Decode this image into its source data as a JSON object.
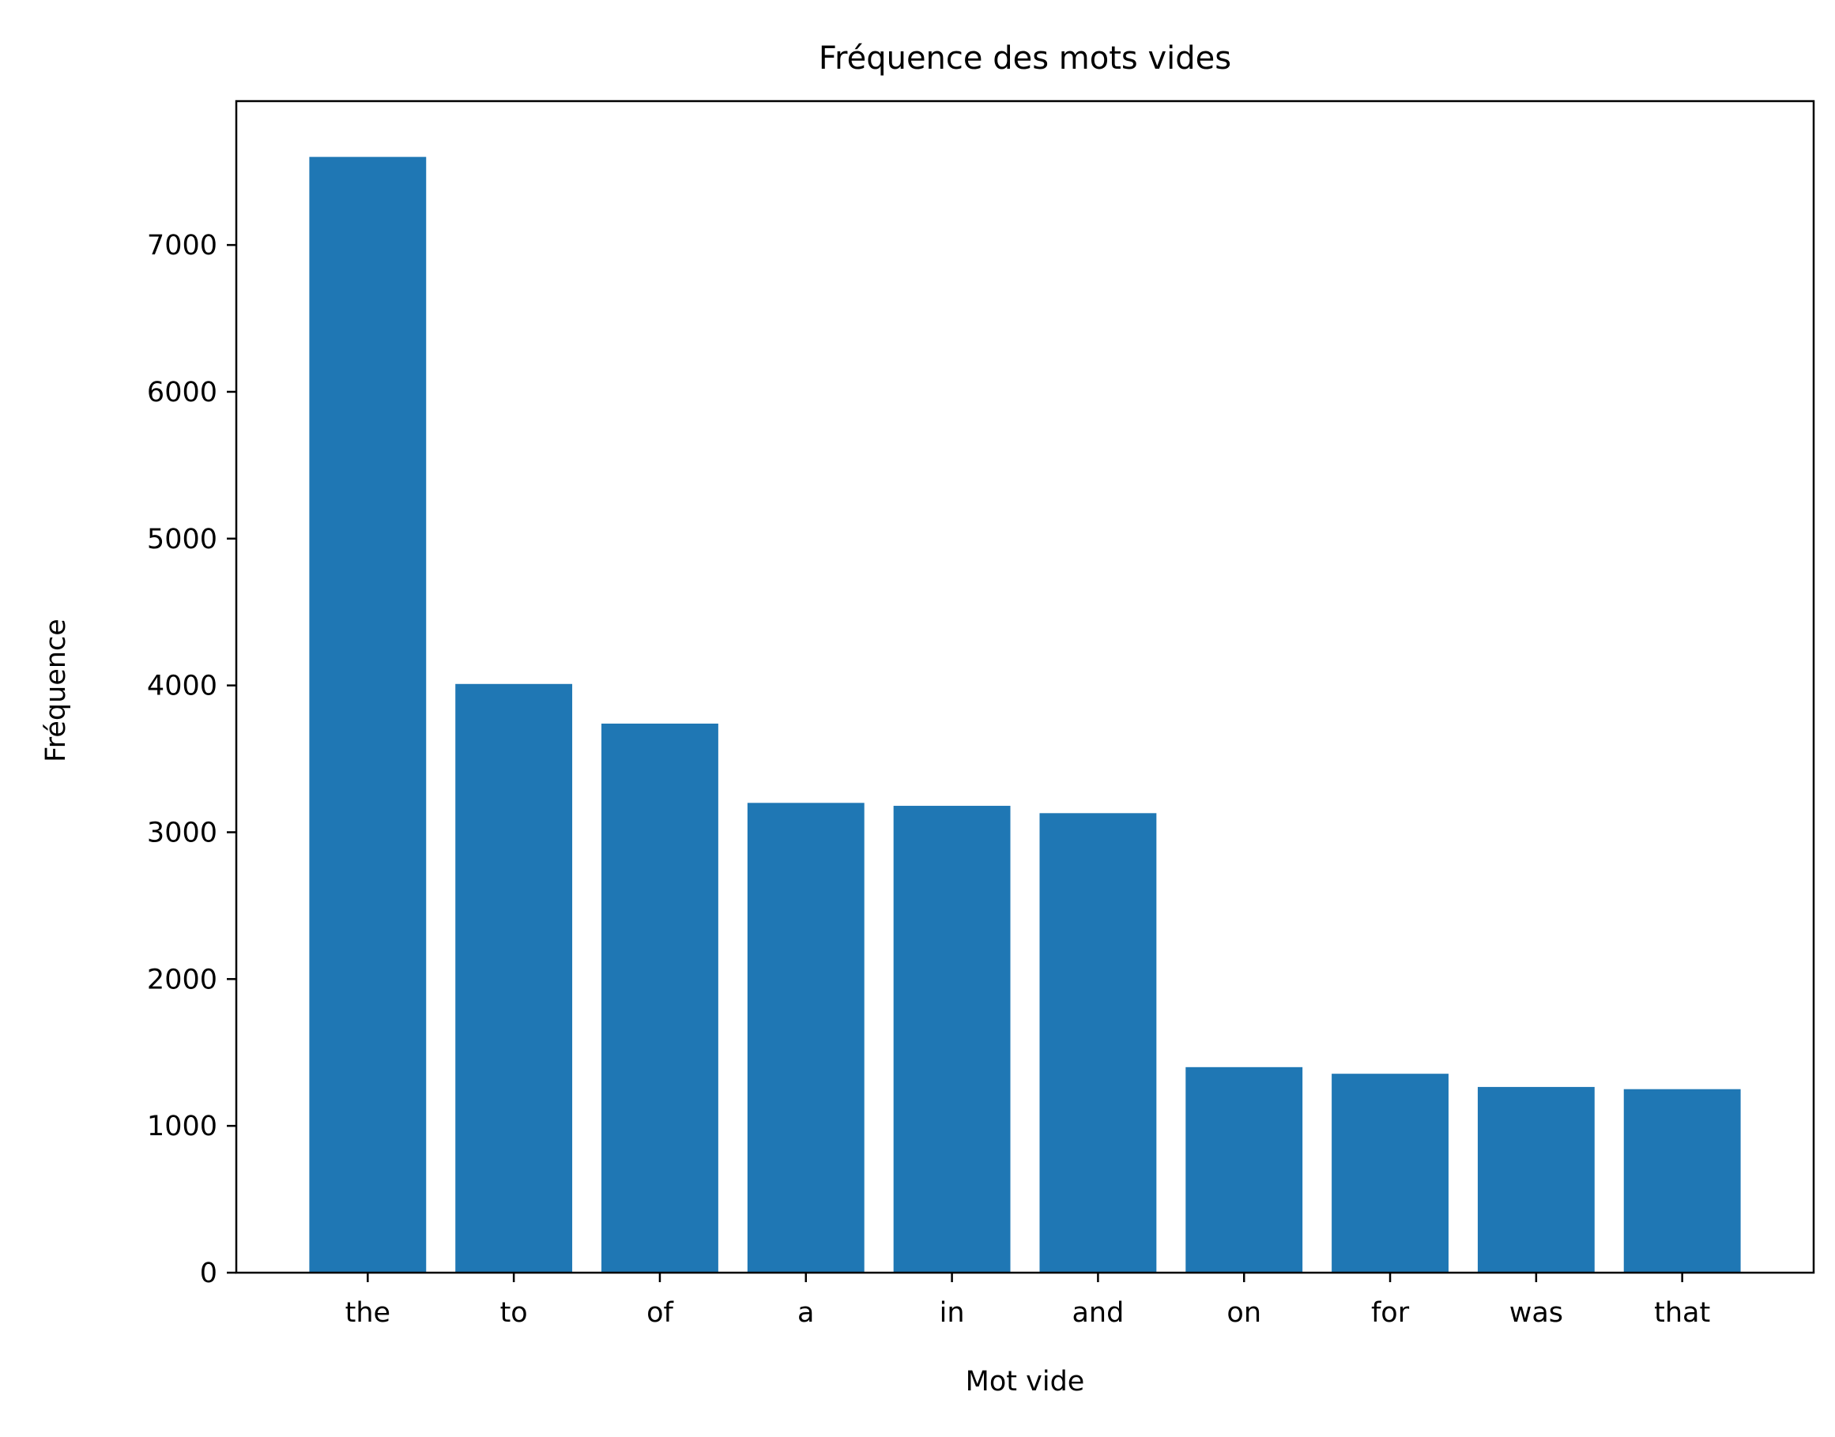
{
  "chart_data": {
    "type": "bar",
    "title": "Fréquence des mots vides",
    "xlabel": "Mot vide",
    "ylabel": "Fréquence",
    "categories": [
      "the",
      "to",
      "of",
      "a",
      "in",
      "and",
      "on",
      "for",
      "was",
      "that"
    ],
    "values": [
      7600,
      4010,
      3740,
      3200,
      3180,
      3130,
      1400,
      1355,
      1265,
      1250
    ],
    "ylim": [
      0,
      7980
    ],
    "yticks": [
      0,
      1000,
      2000,
      3000,
      4000,
      5000,
      6000,
      7000
    ],
    "bar_color": "#1f77b4",
    "grid": false,
    "legend": "none"
  }
}
